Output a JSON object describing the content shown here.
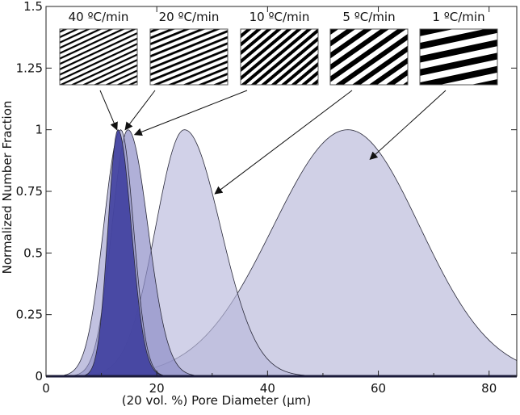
{
  "chart_data": {
    "type": "area",
    "xlabel": "(20 vol. %) Pore Diameter (μm)",
    "ylabel": "Normalized Number Fraction",
    "xlim": [
      0,
      85
    ],
    "ylim": [
      0,
      1.5
    ],
    "xticks": [
      0,
      20,
      40,
      60,
      80
    ],
    "yticks": [
      0,
      0.25,
      0.5,
      0.75,
      1,
      1.25,
      1.5
    ],
    "ytick_labels": [
      "0",
      "0.25",
      "0.5",
      "0.75",
      "1",
      "1.25",
      "1.5"
    ],
    "grid": false,
    "series": [
      {
        "name": "40 ºC/min",
        "peak_x": 13.0,
        "peak_y": 1,
        "sigma_left": 1.8,
        "sigma_right": 2.4,
        "fill": "#3f3f9e",
        "fill_opacity": 0.9
      },
      {
        "name": "20 ºC/min",
        "peak_x": 14.8,
        "peak_y": 1,
        "sigma_left": 2.9,
        "sigma_right": 3.6,
        "fill": "#8e8ec8",
        "fill_opacity": 0.7
      },
      {
        "name": "10 ºC/min",
        "peak_x": 13.5,
        "peak_y": 1,
        "sigma_left": 3.1,
        "sigma_right": 2.3,
        "fill": "#9999cc",
        "fill_opacity": 0.6
      },
      {
        "name": "5 ºC/min",
        "peak_x": 25.0,
        "peak_y": 1,
        "sigma_left": 5.2,
        "sigma_right": 6.5,
        "fill": "#b8b8dc",
        "fill_opacity": 0.65
      },
      {
        "name": "1 ºC/min",
        "peak_x": 54.5,
        "peak_y": 1,
        "sigma_left": 13.5,
        "sigma_right": 13.0,
        "fill": "#c8c8e2",
        "fill_opacity": 0.85
      }
    ],
    "annotations": [
      {
        "label": "40 ºC/min",
        "arrow_tip": [
          12.8,
          1.0
        ]
      },
      {
        "label": "20 ºC/min",
        "arrow_tip": [
          14.3,
          1.0
        ]
      },
      {
        "label": "10 ºC/min",
        "arrow_tip": [
          16.0,
          0.98
        ]
      },
      {
        "label": "5 ºC/min",
        "arrow_tip": [
          30.5,
          0.74
        ]
      },
      {
        "label": "1 ºC/min",
        "arrow_tip": [
          58.5,
          0.88
        ]
      }
    ]
  }
}
